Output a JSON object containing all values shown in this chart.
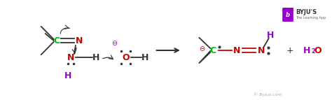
{
  "bg_color": "#ffffff",
  "figsize": [
    4.74,
    1.43
  ],
  "dpi": 100,
  "colors": {
    "C": "#00bb00",
    "N_red": "#cc0000",
    "H_purple": "#9900cc",
    "H_black": "#333333",
    "O_red": "#cc0000",
    "black": "#333333",
    "gray": "#666666",
    "purple": "#9900cc",
    "arrow_color": "#555555"
  },
  "watermark": "© Byjus.com",
  "byju_text": "BYJU'S",
  "byju_sub": "The Learning App"
}
